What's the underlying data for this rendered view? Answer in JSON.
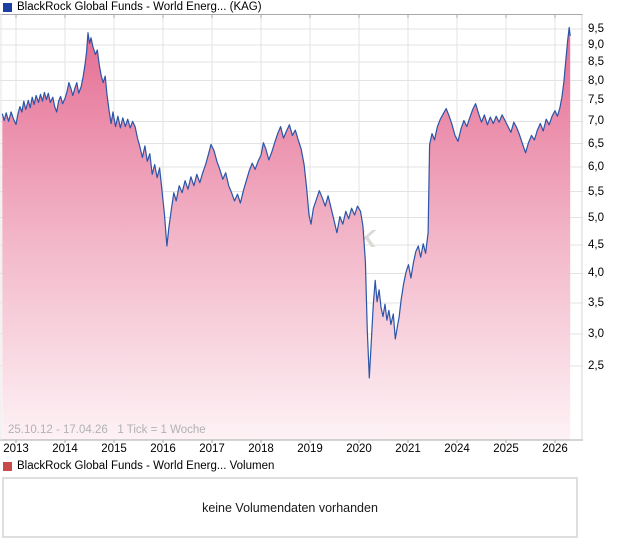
{
  "price_chart": {
    "legend": "BlackRock Global Funds - World Energ... (KAG)",
    "legend_color": "#1b3fa0",
    "range_info": "25.10.12 - 17.04.26   1 Tick = 1 Woche",
    "watermark": "CK",
    "line_color": "#2b55a7",
    "area_gradient_top": "#e4688f",
    "area_gradient_mid": "#f3b9cb",
    "area_gradient_bottom": "#fdf2f5",
    "grid_color": "#e3e3e3",
    "axis_line_color": "#a8a8a8",
    "y_labels": [
      "9,5",
      "9,0",
      "8,5",
      "8,0",
      "7,5",
      "7,0",
      "6,5",
      "6,0",
      "5,5",
      "5,0",
      "4,5",
      "4,0",
      "3,5",
      "3,0",
      "2,5"
    ],
    "x_labels": [
      "2013",
      "2014",
      "2015",
      "2016",
      "2017",
      "2018",
      "2019",
      "2020",
      "2021",
      "2024",
      "2025",
      "2026"
    ]
  },
  "volume_chart": {
    "legend": "BlackRock Global Funds - World Energ... Volumen",
    "legend_color": "#c84a49",
    "no_data_text": "keine Volumendaten vorhanden"
  },
  "chart_data": {
    "type": "area",
    "title": "BlackRock Global Funds - World Energ... (KAG)",
    "x_axis": {
      "range_start": "25.10.12",
      "range_end": "17.04.26",
      "tick_note": "1 Tick = 1 Woche",
      "tick_years": [
        2013,
        2014,
        2015,
        2016,
        2017,
        2018,
        2019,
        2020,
        2021,
        2024,
        2025,
        2026
      ],
      "data_gap_years": [
        2022,
        2023
      ]
    },
    "y_axis": {
      "ticks": [
        9.5,
        9.0,
        8.5,
        8.0,
        7.5,
        7.0,
        6.5,
        6.0,
        5.5,
        5.0,
        4.5,
        4.0,
        3.5,
        3.0,
        2.5
      ],
      "side": "right",
      "scale": "nonlinear-compressed-top"
    },
    "legend_position": "top-left",
    "grid": true,
    "series": [
      {
        "name": "BlackRock Global Funds - World Energ... (KAG)",
        "segments": [
          [
            [
              2012.72,
              7.18
            ],
            [
              2012.76,
              7.02
            ],
            [
              2012.8,
              7.2
            ],
            [
              2012.85,
              7.0
            ],
            [
              2012.9,
              7.22
            ],
            [
              2012.95,
              7.05
            ],
            [
              2013.0,
              6.93
            ],
            [
              2013.04,
              7.18
            ],
            [
              2013.08,
              7.35
            ],
            [
              2013.12,
              7.22
            ],
            [
              2013.16,
              7.48
            ],
            [
              2013.2,
              7.28
            ],
            [
              2013.25,
              7.5
            ],
            [
              2013.29,
              7.32
            ],
            [
              2013.33,
              7.58
            ],
            [
              2013.37,
              7.4
            ],
            [
              2013.41,
              7.62
            ],
            [
              2013.46,
              7.45
            ],
            [
              2013.5,
              7.65
            ],
            [
              2013.54,
              7.48
            ],
            [
              2013.58,
              7.7
            ],
            [
              2013.62,
              7.52
            ],
            [
              2013.66,
              7.68
            ],
            [
              2013.7,
              7.45
            ],
            [
              2013.75,
              7.58
            ],
            [
              2013.79,
              7.35
            ],
            [
              2013.83,
              7.22
            ],
            [
              2013.87,
              7.48
            ],
            [
              2013.91,
              7.6
            ],
            [
              2013.95,
              7.42
            ],
            [
              2014.0,
              7.55
            ],
            [
              2014.04,
              7.72
            ],
            [
              2014.08,
              7.95
            ],
            [
              2014.12,
              7.8
            ],
            [
              2014.16,
              7.62
            ],
            [
              2014.2,
              7.8
            ],
            [
              2014.24,
              7.95
            ],
            [
              2014.28,
              7.68
            ],
            [
              2014.33,
              7.85
            ],
            [
              2014.37,
              8.1
            ],
            [
              2014.41,
              8.45
            ],
            [
              2014.44,
              8.8
            ],
            [
              2014.47,
              9.38
            ],
            [
              2014.5,
              9.05
            ],
            [
              2014.53,
              9.22
            ],
            [
              2014.57,
              8.95
            ],
            [
              2014.62,
              8.72
            ],
            [
              2014.66,
              8.85
            ],
            [
              2014.7,
              8.42
            ],
            [
              2014.74,
              8.12
            ],
            [
              2014.78,
              7.95
            ],
            [
              2014.82,
              8.12
            ],
            [
              2014.86,
              7.62
            ],
            [
              2014.9,
              7.25
            ],
            [
              2014.94,
              6.95
            ],
            [
              2014.98,
              7.22
            ],
            [
              2015.03,
              6.88
            ],
            [
              2015.08,
              7.12
            ],
            [
              2015.13,
              6.85
            ],
            [
              2015.18,
              7.08
            ],
            [
              2015.23,
              6.88
            ],
            [
              2015.28,
              7.05
            ],
            [
              2015.33,
              6.85
            ],
            [
              2015.38,
              7.0
            ],
            [
              2015.43,
              6.88
            ],
            [
              2015.48,
              6.62
            ],
            [
              2015.53,
              6.42
            ],
            [
              2015.58,
              6.2
            ],
            [
              2015.63,
              6.45
            ],
            [
              2015.68,
              6.12
            ],
            [
              2015.73,
              6.28
            ],
            [
              2015.78,
              5.85
            ],
            [
              2015.83,
              6.05
            ],
            [
              2015.88,
              5.78
            ],
            [
              2015.93,
              5.98
            ],
            [
              2015.98,
              5.52
            ],
            [
              2016.03,
              5.05
            ],
            [
              2016.08,
              4.48
            ],
            [
              2016.12,
              4.82
            ],
            [
              2016.17,
              5.15
            ],
            [
              2016.22,
              5.48
            ],
            [
              2016.27,
              5.32
            ],
            [
              2016.33,
              5.62
            ],
            [
              2016.39,
              5.48
            ],
            [
              2016.45,
              5.72
            ],
            [
              2016.51,
              5.55
            ],
            [
              2016.57,
              5.8
            ],
            [
              2016.63,
              5.62
            ],
            [
              2016.69,
              5.85
            ],
            [
              2016.75,
              5.68
            ],
            [
              2016.81,
              5.88
            ],
            [
              2016.87,
              6.05
            ],
            [
              2016.93,
              6.28
            ],
            [
              2016.98,
              6.48
            ],
            [
              2017.04,
              6.35
            ],
            [
              2017.1,
              6.12
            ],
            [
              2017.16,
              5.95
            ],
            [
              2017.22,
              5.75
            ],
            [
              2017.28,
              5.88
            ],
            [
              2017.34,
              5.62
            ],
            [
              2017.4,
              5.48
            ],
            [
              2017.46,
              5.32
            ],
            [
              2017.52,
              5.45
            ],
            [
              2017.58,
              5.28
            ],
            [
              2017.64,
              5.52
            ],
            [
              2017.7,
              5.72
            ],
            [
              2017.76,
              5.92
            ],
            [
              2017.82,
              6.08
            ],
            [
              2017.88,
              5.95
            ],
            [
              2017.94,
              6.12
            ],
            [
              2018.0,
              6.25
            ],
            [
              2018.05,
              6.52
            ],
            [
              2018.1,
              6.38
            ],
            [
              2018.16,
              6.15
            ],
            [
              2018.22,
              6.32
            ],
            [
              2018.28,
              6.52
            ],
            [
              2018.34,
              6.72
            ],
            [
              2018.4,
              6.88
            ],
            [
              2018.46,
              6.62
            ],
            [
              2018.52,
              6.78
            ],
            [
              2018.58,
              6.92
            ],
            [
              2018.64,
              6.68
            ],
            [
              2018.7,
              6.8
            ],
            [
              2018.76,
              6.58
            ],
            [
              2018.82,
              6.38
            ],
            [
              2018.88,
              6.05
            ],
            [
              2018.93,
              5.58
            ],
            [
              2018.98,
              5.05
            ],
            [
              2019.02,
              4.88
            ],
            [
              2019.07,
              5.18
            ],
            [
              2019.13,
              5.35
            ],
            [
              2019.19,
              5.52
            ],
            [
              2019.25,
              5.38
            ],
            [
              2019.31,
              5.22
            ],
            [
              2019.37,
              5.42
            ],
            [
              2019.43,
              5.18
            ],
            [
              2019.49,
              4.95
            ],
            [
              2019.55,
              4.72
            ],
            [
              2019.61,
              5.02
            ],
            [
              2019.67,
              4.88
            ],
            [
              2019.73,
              5.12
            ],
            [
              2019.79,
              4.98
            ],
            [
              2019.85,
              5.18
            ],
            [
              2019.91,
              5.05
            ],
            [
              2019.97,
              5.22
            ],
            [
              2020.03,
              5.12
            ],
            [
              2020.08,
              4.85
            ],
            [
              2020.13,
              4.2
            ],
            [
              2020.17,
              3.05
            ],
            [
              2020.21,
              2.32
            ],
            [
              2020.25,
              2.88
            ],
            [
              2020.29,
              3.45
            ],
            [
              2020.33,
              3.88
            ],
            [
              2020.37,
              3.52
            ],
            [
              2020.41,
              3.72
            ],
            [
              2020.45,
              3.42
            ],
            [
              2020.49,
              3.28
            ],
            [
              2020.53,
              3.48
            ],
            [
              2020.57,
              3.22
            ],
            [
              2020.61,
              3.38
            ],
            [
              2020.65,
              3.15
            ],
            [
              2020.7,
              3.32
            ],
            [
              2020.74,
              2.92
            ],
            [
              2020.78,
              3.1
            ],
            [
              2020.82,
              3.28
            ],
            [
              2020.86,
              3.55
            ],
            [
              2020.91,
              3.82
            ],
            [
              2020.96,
              4.02
            ],
            [
              2021.01,
              4.15
            ],
            [
              2021.06,
              3.92
            ],
            [
              2021.11,
              4.18
            ],
            [
              2021.16,
              4.38
            ],
            [
              2021.21,
              4.48
            ],
            [
              2021.26,
              4.28
            ],
            [
              2021.31,
              4.52
            ],
            [
              2021.36,
              4.35
            ],
            [
              2021.41,
              4.72
            ]
          ],
          [
            [
              2023.44,
              6.48
            ],
            [
              2023.49,
              6.72
            ],
            [
              2023.54,
              6.58
            ],
            [
              2023.6,
              6.88
            ],
            [
              2023.66,
              7.05
            ],
            [
              2023.72,
              7.18
            ],
            [
              2023.78,
              7.3
            ],
            [
              2023.84,
              7.12
            ],
            [
              2023.9,
              6.92
            ],
            [
              2023.96,
              6.68
            ],
            [
              2024.02,
              6.55
            ],
            [
              2024.08,
              6.82
            ],
            [
              2024.14,
              7.02
            ],
            [
              2024.2,
              6.88
            ],
            [
              2024.26,
              7.08
            ],
            [
              2024.32,
              7.28
            ],
            [
              2024.38,
              7.42
            ],
            [
              2024.44,
              7.18
            ],
            [
              2024.5,
              6.98
            ],
            [
              2024.56,
              7.15
            ],
            [
              2024.62,
              6.92
            ],
            [
              2024.68,
              7.1
            ],
            [
              2024.74,
              6.95
            ],
            [
              2024.8,
              7.12
            ],
            [
              2024.86,
              6.98
            ],
            [
              2024.92,
              7.15
            ],
            [
              2024.98,
              7.02
            ],
            [
              2025.04,
              6.88
            ],
            [
              2025.1,
              6.75
            ],
            [
              2025.16,
              6.98
            ],
            [
              2025.22,
              6.85
            ],
            [
              2025.28,
              6.68
            ],
            [
              2025.34,
              6.48
            ],
            [
              2025.4,
              6.3
            ],
            [
              2025.46,
              6.52
            ],
            [
              2025.52,
              6.68
            ],
            [
              2025.58,
              6.58
            ],
            [
              2025.64,
              6.8
            ],
            [
              2025.7,
              6.95
            ],
            [
              2025.76,
              6.78
            ],
            [
              2025.82,
              7.05
            ],
            [
              2025.88,
              6.92
            ],
            [
              2025.94,
              7.12
            ],
            [
              2026.0,
              7.25
            ],
            [
              2026.05,
              7.12
            ],
            [
              2026.1,
              7.32
            ],
            [
              2026.14,
              7.58
            ],
            [
              2026.18,
              7.95
            ],
            [
              2026.22,
              8.55
            ],
            [
              2026.26,
              9.15
            ],
            [
              2026.29,
              9.55
            ],
            [
              2026.31,
              9.28
            ]
          ]
        ]
      }
    ]
  }
}
